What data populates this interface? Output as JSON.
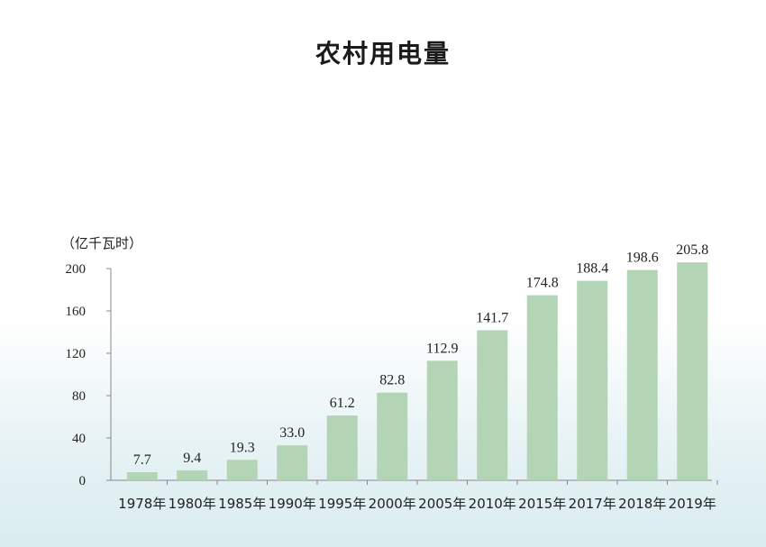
{
  "colors": {
    "bar": "#b4d4b6",
    "axis": "#888888"
  },
  "chart_data": {
    "type": "bar",
    "title": "农村用电量",
    "ylabel": "（亿千瓦时）",
    "categories": [
      "1978年",
      "1980年",
      "1985年",
      "1990年",
      "1995年",
      "2000年",
      "2005年",
      "2010年",
      "2015年",
      "2017年",
      "2018年",
      "2019年"
    ],
    "values": [
      7.7,
      9.4,
      19.3,
      33.0,
      61.2,
      82.8,
      112.9,
      141.7,
      174.8,
      188.4,
      198.6,
      205.8
    ],
    "data_labels": [
      "7.7",
      "9.4",
      "19.3",
      "33.0",
      "61.2",
      "82.8",
      "112.9",
      "141.7",
      "174.8",
      "188.4",
      "198.6",
      "205.8"
    ],
    "ylim": [
      0,
      200
    ],
    "yticks": [
      0,
      40,
      80,
      120,
      160,
      200
    ],
    "grid": false,
    "legend": "none"
  }
}
